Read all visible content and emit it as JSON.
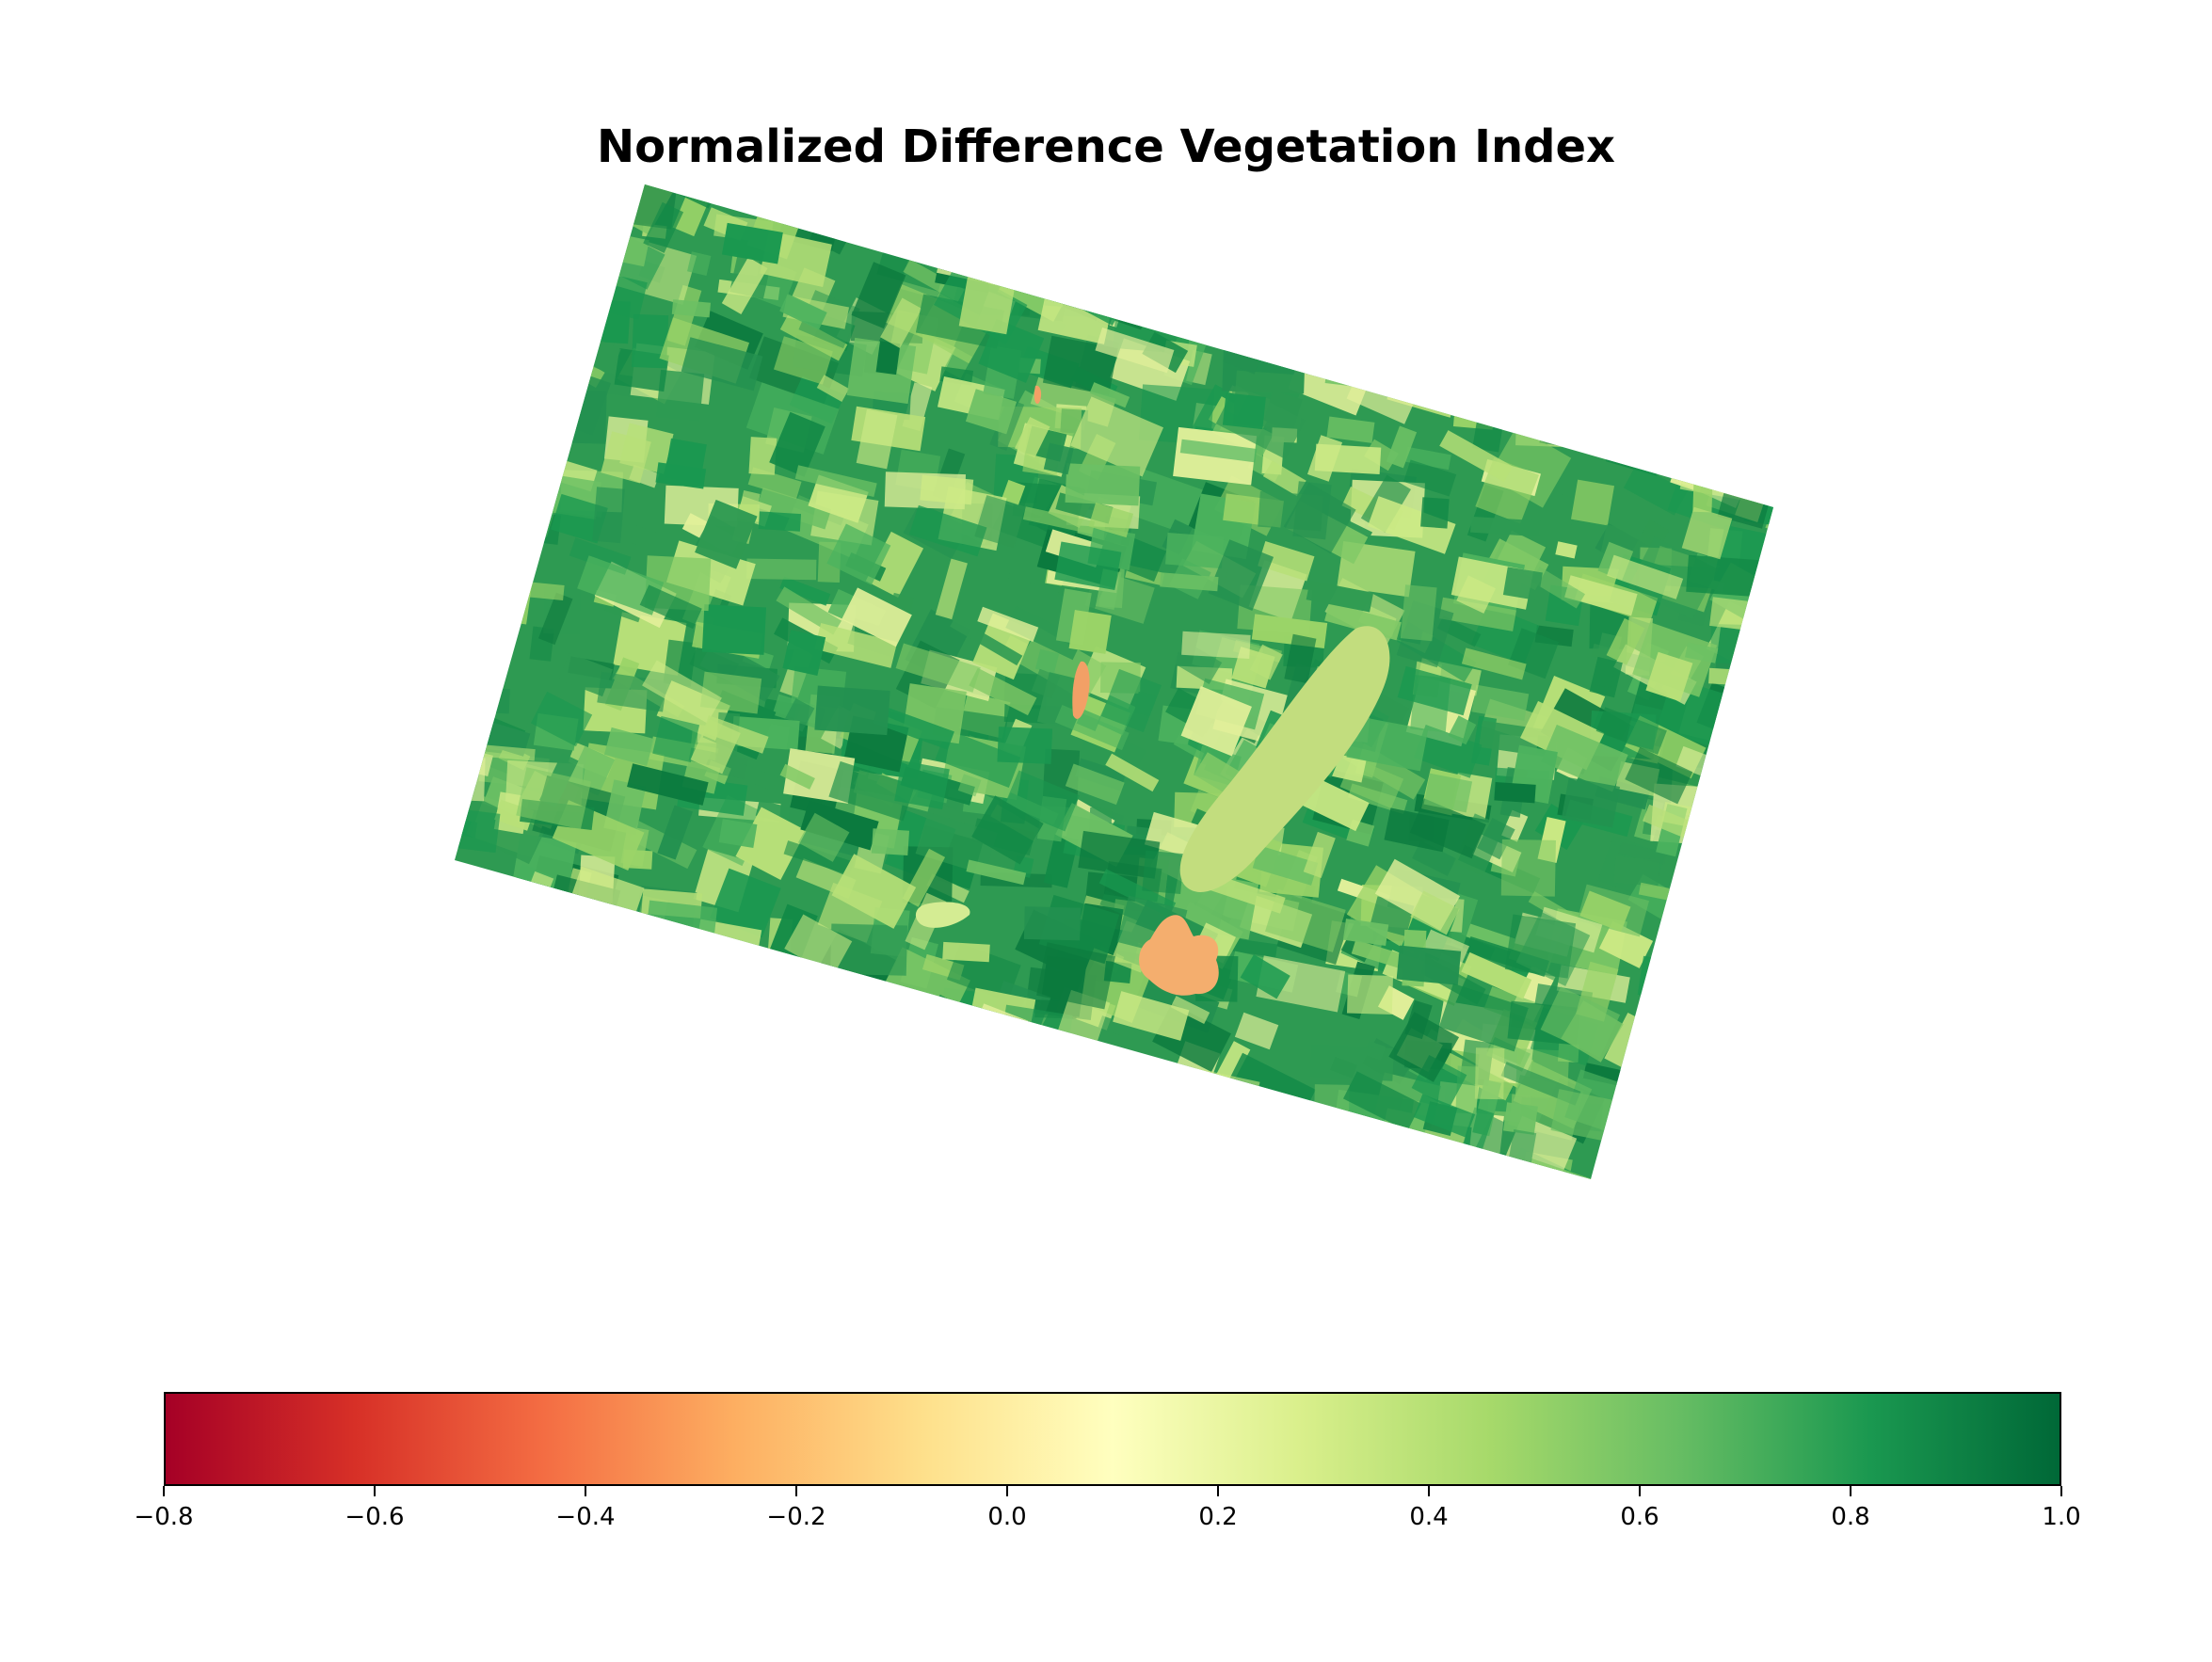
{
  "title": "Normalized Difference Vegetation Index",
  "colorbar": {
    "colormap": "RdYlGn",
    "min": -0.8,
    "max": 1.0,
    "orientation": "horizontal",
    "ticks": [
      "−0.8",
      "−0.6",
      "−0.4",
      "−0.2",
      "0.0",
      "0.2",
      "0.4",
      "0.6",
      "0.8",
      "1.0"
    ],
    "stops": [
      "#a50026",
      "#d73027",
      "#f46d43",
      "#fdae61",
      "#fee08b",
      "#ffffbf",
      "#d9ef8b",
      "#a6d96a",
      "#66bd63",
      "#1a9850",
      "#006837"
    ]
  },
  "map": {
    "base_color": "#2e9a52",
    "water_colors": {
      "large_lake": "#c2dd7e",
      "south_lake": "#f4ae6e",
      "narrow_lake": "#f2a066"
    }
  }
}
